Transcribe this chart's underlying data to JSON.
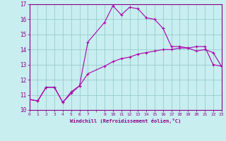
{
  "xlabel": "Windchill (Refroidissement éolien,°C)",
  "bg_color": "#c8eef0",
  "line_color": "#aa00aa",
  "grid_color": "#99cccc",
  "hours": [
    0,
    1,
    2,
    3,
    4,
    5,
    6,
    7,
    9,
    10,
    11,
    12,
    13,
    14,
    15,
    16,
    17,
    18,
    19,
    20,
    21,
    22,
    23
  ],
  "temp": [
    10.7,
    10.6,
    11.5,
    11.5,
    10.5,
    11.1,
    11.6,
    14.5,
    15.8,
    16.9,
    16.3,
    16.8,
    16.7,
    16.1,
    16.0,
    15.4,
    14.2,
    14.2,
    14.1,
    13.9,
    14.0,
    13.8,
    12.9
  ],
  "windchill": [
    10.7,
    10.6,
    11.5,
    11.5,
    10.5,
    11.2,
    11.6,
    12.4,
    12.9,
    13.2,
    13.4,
    13.5,
    13.7,
    13.8,
    13.9,
    14.0,
    14.0,
    14.1,
    14.1,
    14.2,
    14.2,
    13.0,
    12.9
  ],
  "ylim": [
    10,
    17
  ],
  "yticks": [
    10,
    11,
    12,
    13,
    14,
    15,
    16,
    17
  ],
  "xtick_labels": [
    "0",
    "1",
    "2",
    "3",
    "4",
    "5",
    "6",
    "7",
    "",
    "9",
    "10",
    "11",
    "12",
    "13",
    "14",
    "15",
    "16",
    "17",
    "18",
    "19",
    "20",
    "21",
    "2223"
  ],
  "font_color": "#880088"
}
